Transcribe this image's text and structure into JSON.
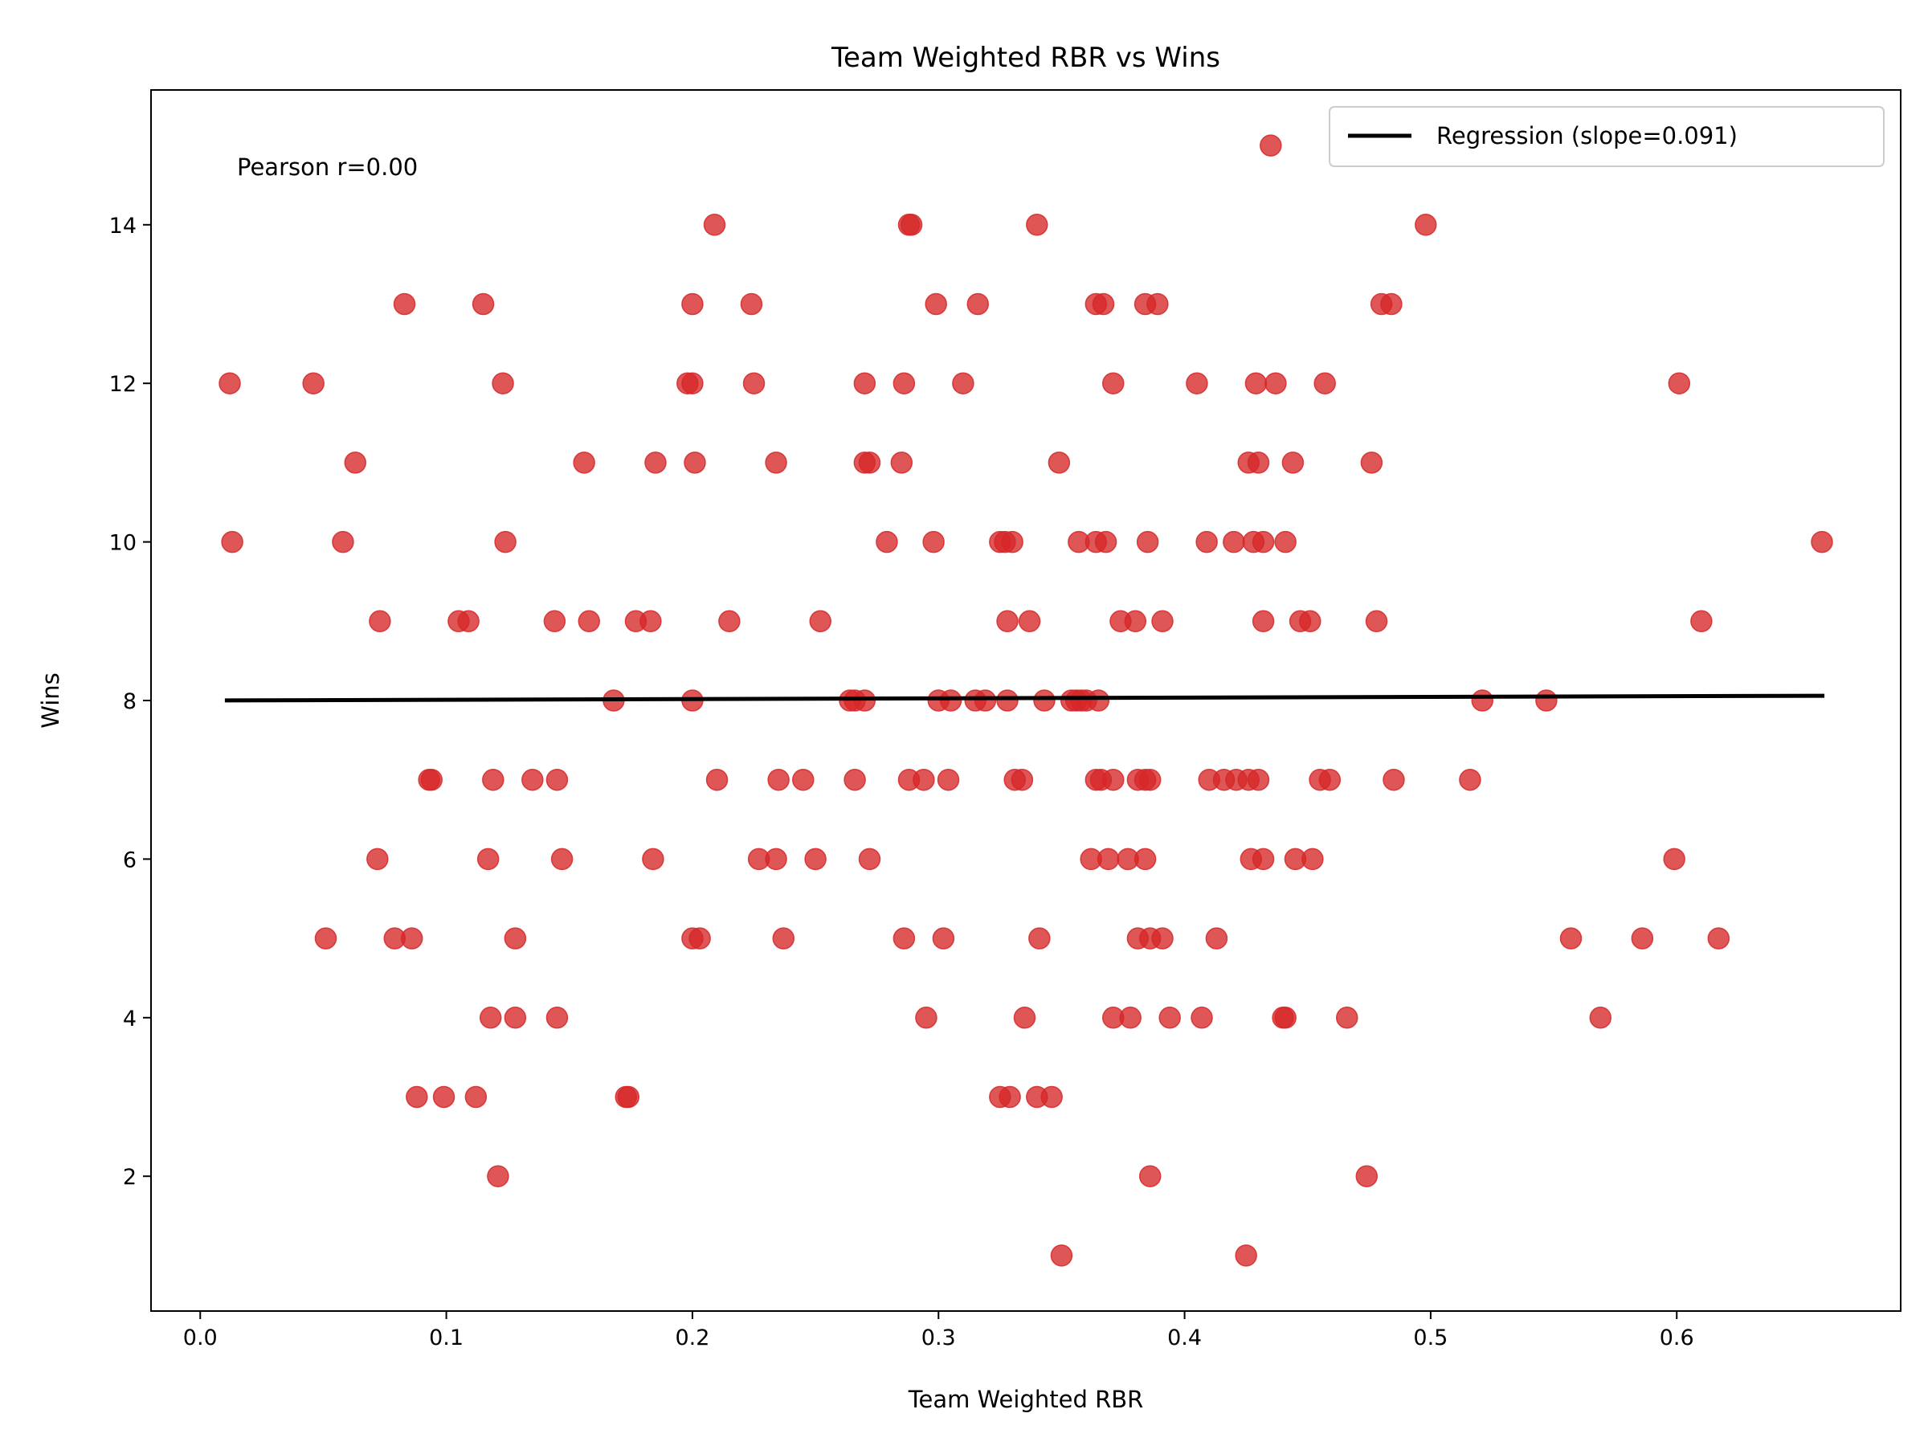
{
  "chart_data": {
    "type": "scatter",
    "title": "Team Weighted RBR vs Wins",
    "xlabel": "Team Weighted RBR",
    "ylabel": "Wins",
    "xlim": [
      -0.02,
      0.691
    ],
    "ylim": [
      0.3,
      15.7
    ],
    "xticks": [
      0.0,
      0.1,
      0.2,
      0.3,
      0.4,
      0.5,
      0.6
    ],
    "xtick_labels": [
      "0.0",
      "0.1",
      "0.2",
      "0.3",
      "0.4",
      "0.5",
      "0.6"
    ],
    "yticks": [
      2,
      4,
      6,
      8,
      10,
      12,
      14
    ],
    "ytick_labels": [
      "2",
      "4",
      "6",
      "8",
      "10",
      "12",
      "14"
    ],
    "grid": false,
    "annotation": "Pearson r=0.00",
    "legend": {
      "placement": "upper-right",
      "entries": [
        "Regression (slope=0.091)"
      ]
    },
    "colors": {
      "points": "#d62728",
      "regression": "#000000"
    },
    "regression": {
      "slope": 0.091,
      "intercept": 8.0,
      "x_range": [
        0.01,
        0.66
      ]
    },
    "points": [
      [
        0.435,
        15
      ],
      [
        0.209,
        14
      ],
      [
        0.288,
        14
      ],
      [
        0.289,
        14
      ],
      [
        0.34,
        14
      ],
      [
        0.498,
        14
      ],
      [
        0.083,
        13
      ],
      [
        0.115,
        13
      ],
      [
        0.2,
        13
      ],
      [
        0.224,
        13
      ],
      [
        0.299,
        13
      ],
      [
        0.316,
        13
      ],
      [
        0.364,
        13
      ],
      [
        0.367,
        13
      ],
      [
        0.384,
        13
      ],
      [
        0.389,
        13
      ],
      [
        0.48,
        13
      ],
      [
        0.484,
        13
      ],
      [
        0.012,
        12
      ],
      [
        0.046,
        12
      ],
      [
        0.123,
        12
      ],
      [
        0.198,
        12
      ],
      [
        0.2,
        12
      ],
      [
        0.225,
        12
      ],
      [
        0.27,
        12
      ],
      [
        0.286,
        12
      ],
      [
        0.31,
        12
      ],
      [
        0.371,
        12
      ],
      [
        0.405,
        12
      ],
      [
        0.429,
        12
      ],
      [
        0.437,
        12
      ],
      [
        0.457,
        12
      ],
      [
        0.601,
        12
      ],
      [
        0.063,
        11
      ],
      [
        0.156,
        11
      ],
      [
        0.185,
        11
      ],
      [
        0.201,
        11
      ],
      [
        0.234,
        11
      ],
      [
        0.27,
        11
      ],
      [
        0.272,
        11
      ],
      [
        0.285,
        11
      ],
      [
        0.349,
        11
      ],
      [
        0.426,
        11
      ],
      [
        0.43,
        11
      ],
      [
        0.444,
        11
      ],
      [
        0.476,
        11
      ],
      [
        0.013,
        10
      ],
      [
        0.058,
        10
      ],
      [
        0.124,
        10
      ],
      [
        0.279,
        10
      ],
      [
        0.298,
        10
      ],
      [
        0.325,
        10
      ],
      [
        0.327,
        10
      ],
      [
        0.33,
        10
      ],
      [
        0.357,
        10
      ],
      [
        0.364,
        10
      ],
      [
        0.368,
        10
      ],
      [
        0.385,
        10
      ],
      [
        0.409,
        10
      ],
      [
        0.42,
        10
      ],
      [
        0.428,
        10
      ],
      [
        0.432,
        10
      ],
      [
        0.441,
        10
      ],
      [
        0.659,
        10
      ],
      [
        0.073,
        9
      ],
      [
        0.105,
        9
      ],
      [
        0.109,
        9
      ],
      [
        0.144,
        9
      ],
      [
        0.158,
        9
      ],
      [
        0.177,
        9
      ],
      [
        0.183,
        9
      ],
      [
        0.215,
        9
      ],
      [
        0.252,
        9
      ],
      [
        0.328,
        9
      ],
      [
        0.337,
        9
      ],
      [
        0.374,
        9
      ],
      [
        0.38,
        9
      ],
      [
        0.391,
        9
      ],
      [
        0.432,
        9
      ],
      [
        0.447,
        9
      ],
      [
        0.451,
        9
      ],
      [
        0.478,
        9
      ],
      [
        0.61,
        9
      ],
      [
        0.168,
        8
      ],
      [
        0.2,
        8
      ],
      [
        0.264,
        8
      ],
      [
        0.266,
        8
      ],
      [
        0.27,
        8
      ],
      [
        0.3,
        8
      ],
      [
        0.305,
        8
      ],
      [
        0.315,
        8
      ],
      [
        0.319,
        8
      ],
      [
        0.328,
        8
      ],
      [
        0.343,
        8
      ],
      [
        0.354,
        8
      ],
      [
        0.356,
        8
      ],
      [
        0.358,
        8
      ],
      [
        0.36,
        8
      ],
      [
        0.365,
        8
      ],
      [
        0.521,
        8
      ],
      [
        0.547,
        8
      ],
      [
        0.093,
        7
      ],
      [
        0.094,
        7
      ],
      [
        0.119,
        7
      ],
      [
        0.135,
        7
      ],
      [
        0.145,
        7
      ],
      [
        0.21,
        7
      ],
      [
        0.235,
        7
      ],
      [
        0.245,
        7
      ],
      [
        0.266,
        7
      ],
      [
        0.288,
        7
      ],
      [
        0.294,
        7
      ],
      [
        0.304,
        7
      ],
      [
        0.331,
        7
      ],
      [
        0.334,
        7
      ],
      [
        0.364,
        7
      ],
      [
        0.366,
        7
      ],
      [
        0.371,
        7
      ],
      [
        0.381,
        7
      ],
      [
        0.384,
        7
      ],
      [
        0.386,
        7
      ],
      [
        0.41,
        7
      ],
      [
        0.416,
        7
      ],
      [
        0.421,
        7
      ],
      [
        0.426,
        7
      ],
      [
        0.43,
        7
      ],
      [
        0.455,
        7
      ],
      [
        0.459,
        7
      ],
      [
        0.485,
        7
      ],
      [
        0.516,
        7
      ],
      [
        0.072,
        6
      ],
      [
        0.117,
        6
      ],
      [
        0.147,
        6
      ],
      [
        0.184,
        6
      ],
      [
        0.227,
        6
      ],
      [
        0.234,
        6
      ],
      [
        0.25,
        6
      ],
      [
        0.272,
        6
      ],
      [
        0.362,
        6
      ],
      [
        0.369,
        6
      ],
      [
        0.377,
        6
      ],
      [
        0.384,
        6
      ],
      [
        0.427,
        6
      ],
      [
        0.432,
        6
      ],
      [
        0.445,
        6
      ],
      [
        0.452,
        6
      ],
      [
        0.599,
        6
      ],
      [
        0.051,
        5
      ],
      [
        0.079,
        5
      ],
      [
        0.086,
        5
      ],
      [
        0.128,
        5
      ],
      [
        0.2,
        5
      ],
      [
        0.203,
        5
      ],
      [
        0.237,
        5
      ],
      [
        0.286,
        5
      ],
      [
        0.302,
        5
      ],
      [
        0.341,
        5
      ],
      [
        0.381,
        5
      ],
      [
        0.386,
        5
      ],
      [
        0.391,
        5
      ],
      [
        0.413,
        5
      ],
      [
        0.557,
        5
      ],
      [
        0.586,
        5
      ],
      [
        0.617,
        5
      ],
      [
        0.118,
        4
      ],
      [
        0.128,
        4
      ],
      [
        0.145,
        4
      ],
      [
        0.295,
        4
      ],
      [
        0.335,
        4
      ],
      [
        0.371,
        4
      ],
      [
        0.378,
        4
      ],
      [
        0.394,
        4
      ],
      [
        0.407,
        4
      ],
      [
        0.44,
        4
      ],
      [
        0.441,
        4
      ],
      [
        0.466,
        4
      ],
      [
        0.569,
        4
      ],
      [
        0.088,
        3
      ],
      [
        0.099,
        3
      ],
      [
        0.112,
        3
      ],
      [
        0.173,
        3
      ],
      [
        0.174,
        3
      ],
      [
        0.325,
        3
      ],
      [
        0.329,
        3
      ],
      [
        0.34,
        3
      ],
      [
        0.346,
        3
      ],
      [
        0.121,
        2
      ],
      [
        0.386,
        2
      ],
      [
        0.474,
        2
      ],
      [
        0.35,
        1
      ],
      [
        0.425,
        1
      ]
    ]
  }
}
